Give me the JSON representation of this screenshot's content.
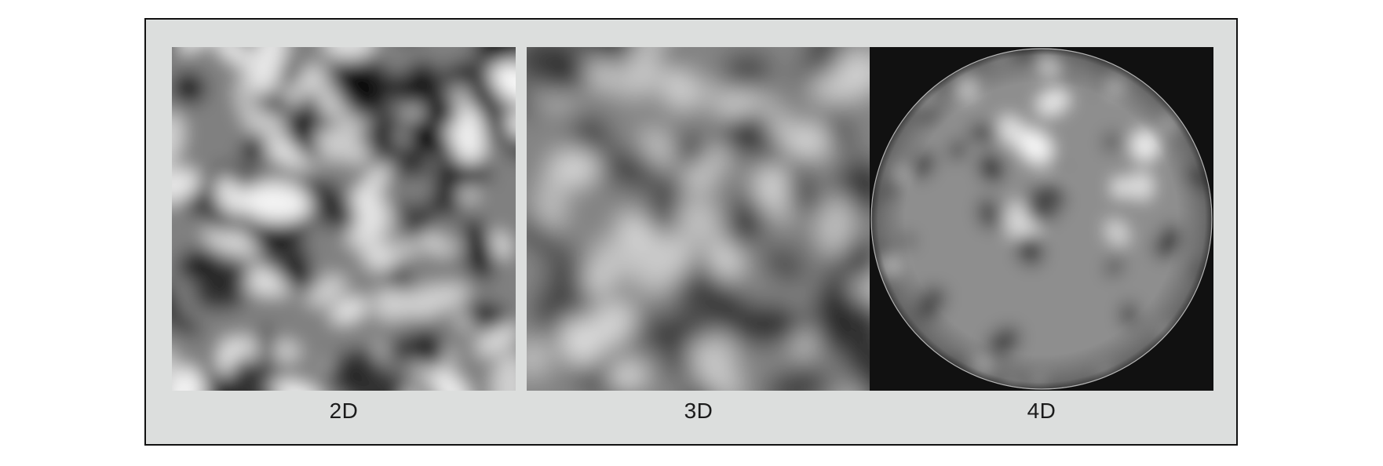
{
  "panels": [
    {
      "label": "2D",
      "background": "#dcdedd"
    },
    {
      "label": "3D",
      "background": "#dcdedd"
    },
    {
      "label": "4D",
      "background": "#111111"
    }
  ],
  "colors": {
    "frame_fill": "#dcdedd",
    "frame_border": "#111111",
    "dark_pixel": "#141414",
    "light_pixel": "#f2f2f2"
  }
}
